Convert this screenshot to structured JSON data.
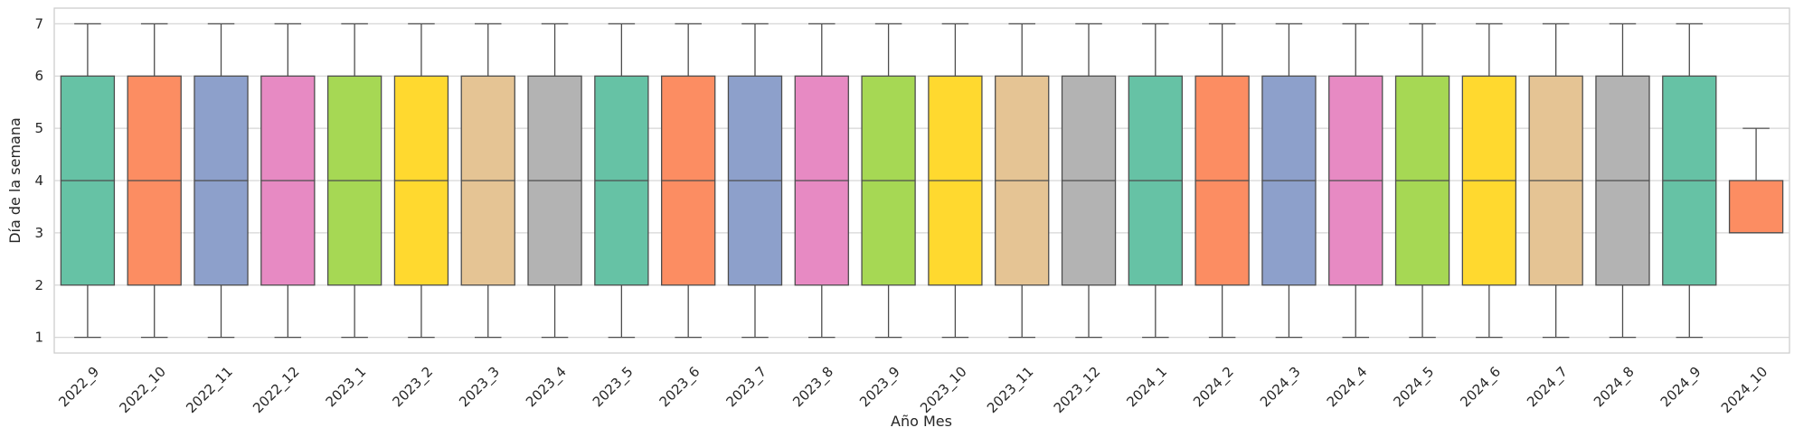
{
  "chart_data": {
    "type": "box",
    "xlabel": "Año Mes",
    "ylabel": "Día de la semana",
    "ylim": [
      0.7,
      7.3
    ],
    "yticks": [
      1,
      2,
      3,
      4,
      5,
      6,
      7
    ],
    "grid": "horizontal",
    "palette": [
      "#66c2a5",
      "#fc8d62",
      "#8da0cb",
      "#e78ac3",
      "#a6d854",
      "#ffd92f",
      "#e5c494",
      "#b3b3b3"
    ],
    "categories": [
      "2022_9",
      "2022_10",
      "2022_11",
      "2022_12",
      "2023_1",
      "2023_2",
      "2023_3",
      "2023_4",
      "2023_5",
      "2023_6",
      "2023_7",
      "2023_8",
      "2023_9",
      "2023_10",
      "2023_11",
      "2023_12",
      "2024_1",
      "2024_2",
      "2024_3",
      "2024_4",
      "2024_5",
      "2024_6",
      "2024_7",
      "2024_8",
      "2024_9",
      "2024_10"
    ],
    "boxes": [
      {
        "min": 1,
        "q1": 2,
        "median": 4,
        "q3": 6,
        "max": 7
      },
      {
        "min": 1,
        "q1": 2,
        "median": 4,
        "q3": 6,
        "max": 7
      },
      {
        "min": 1,
        "q1": 2,
        "median": 4,
        "q3": 6,
        "max": 7
      },
      {
        "min": 1,
        "q1": 2,
        "median": 4,
        "q3": 6,
        "max": 7
      },
      {
        "min": 1,
        "q1": 2,
        "median": 4,
        "q3": 6,
        "max": 7
      },
      {
        "min": 1,
        "q1": 2,
        "median": 4,
        "q3": 6,
        "max": 7
      },
      {
        "min": 1,
        "q1": 2,
        "median": 4,
        "q3": 6,
        "max": 7
      },
      {
        "min": 1,
        "q1": 2,
        "median": 4,
        "q3": 6,
        "max": 7
      },
      {
        "min": 1,
        "q1": 2,
        "median": 4,
        "q3": 6,
        "max": 7
      },
      {
        "min": 1,
        "q1": 2,
        "median": 4,
        "q3": 6,
        "max": 7
      },
      {
        "min": 1,
        "q1": 2,
        "median": 4,
        "q3": 6,
        "max": 7
      },
      {
        "min": 1,
        "q1": 2,
        "median": 4,
        "q3": 6,
        "max": 7
      },
      {
        "min": 1,
        "q1": 2,
        "median": 4,
        "q3": 6,
        "max": 7
      },
      {
        "min": 1,
        "q1": 2,
        "median": 4,
        "q3": 6,
        "max": 7
      },
      {
        "min": 1,
        "q1": 2,
        "median": 4,
        "q3": 6,
        "max": 7
      },
      {
        "min": 1,
        "q1": 2,
        "median": 4,
        "q3": 6,
        "max": 7
      },
      {
        "min": 1,
        "q1": 2,
        "median": 4,
        "q3": 6,
        "max": 7
      },
      {
        "min": 1,
        "q1": 2,
        "median": 4,
        "q3": 6,
        "max": 7
      },
      {
        "min": 1,
        "q1": 2,
        "median": 4,
        "q3": 6,
        "max": 7
      },
      {
        "min": 1,
        "q1": 2,
        "median": 4,
        "q3": 6,
        "max": 7
      },
      {
        "min": 1,
        "q1": 2,
        "median": 4,
        "q3": 6,
        "max": 7
      },
      {
        "min": 1,
        "q1": 2,
        "median": 4,
        "q3": 6,
        "max": 7
      },
      {
        "min": 1,
        "q1": 2,
        "median": 4,
        "q3": 6,
        "max": 7
      },
      {
        "min": 1,
        "q1": 2,
        "median": 4,
        "q3": 6,
        "max": 7
      },
      {
        "min": 1,
        "q1": 2,
        "median": 4,
        "q3": 6,
        "max": 7
      },
      {
        "min": 3,
        "q1": 3,
        "median": 3,
        "q3": 4,
        "max": 5
      }
    ]
  }
}
